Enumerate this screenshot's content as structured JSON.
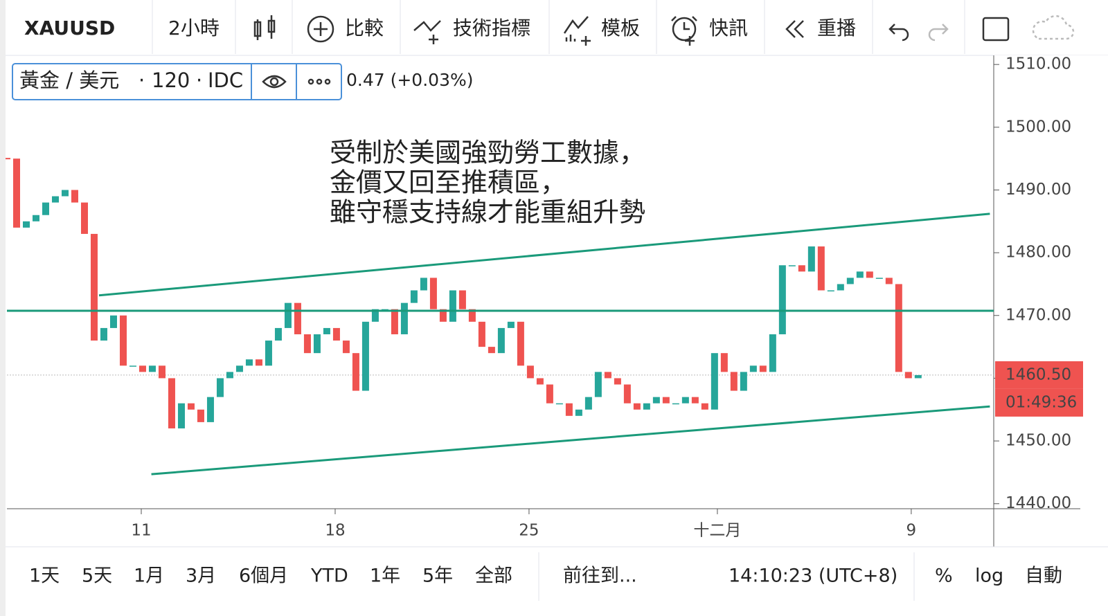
{
  "toolbar": {
    "symbol": "XAUUSD",
    "items": [
      "2小時",
      "比較",
      "技術指標",
      "模板",
      "快訊",
      "重播"
    ]
  },
  "legend": {
    "symbol": "黃金 / 美元",
    "interval": "120",
    "source": "IDC",
    "change": "0.47 (+0.03%)"
  },
  "chart_data": {
    "type": "candlestick",
    "annotation": [
      "受制於美國強勁勞工數據，",
      "金價又回至推積區，",
      "雖守穩支持線才能重組升勢"
    ],
    "values": [
      1495,
      1484,
      1485,
      1486,
      1488,
      1489,
      1490,
      1488,
      1483,
      1466,
      1468,
      1470,
      1462,
      1462,
      1461,
      1462,
      1460,
      1452,
      1456,
      1455,
      1453,
      1457,
      1460,
      1461,
      1462,
      1463,
      1462,
      1466,
      1468,
      1472,
      1467,
      1464,
      1467,
      1468,
      1466,
      1464,
      1458,
      1469,
      1471,
      1471,
      1467,
      1472,
      1474,
      1476,
      1471,
      1469,
      1474,
      1471,
      1469,
      1465,
      1464,
      1468,
      1469,
      1462,
      1460,
      1459,
      1456,
      1456,
      1454,
      1455,
      1457,
      1461,
      1460,
      1459,
      1456,
      1455,
      1456,
      1457,
      1456,
      1456,
      1457,
      1456,
      1455,
      1464,
      1461,
      1458,
      1461,
      1462,
      1461,
      1467,
      1478,
      1478,
      1477,
      1481,
      1474,
      1474,
      1475,
      1476,
      1477,
      1476,
      1476,
      1475,
      1461,
      1460,
      1460.5
    ],
    "up_color": "#26a69a",
    "down_color": "#ef5350",
    "xlim": [
      0,
      101.8
    ],
    "xticks": [
      {
        "value": 13.86,
        "label": "11"
      },
      {
        "value": 33.86,
        "label": "18"
      },
      {
        "value": 53.86,
        "label": "25"
      },
      {
        "value": 73.29,
        "label": "十二月"
      },
      {
        "value": 93.29,
        "label": "9"
      }
    ],
    "ylim": [
      1439.2,
      1510.9
    ],
    "yticks": [
      {
        "value": 1440,
        "label": "1440.00"
      },
      {
        "value": 1450,
        "label": "1450.00"
      },
      {
        "value": 1460,
        "label": "1460.00"
      },
      {
        "value": 1470,
        "label": "1470.00"
      },
      {
        "value": 1480,
        "label": "1480.00"
      },
      {
        "value": 1490,
        "label": "1490.00"
      },
      {
        "value": 1500,
        "label": "1500.00"
      },
      {
        "value": 1510,
        "label": "1510.00"
      }
    ],
    "trend_lines": [
      {
        "x": [
          9.5,
          101.4
        ],
        "y": [
          1473.2,
          1486.2
        ]
      },
      {
        "x": [
          0,
          101.8
        ],
        "y": [
          1470.75,
          1470.75
        ]
      },
      {
        "x": [
          14.9,
          101.4
        ],
        "y": [
          1444.7,
          1455.5
        ]
      }
    ],
    "line_color": "#1a9a7a",
    "price_label": {
      "value": 1460.5,
      "label": "1460.50"
    },
    "countdown": "01:49:36"
  },
  "bottom_bar": {
    "ranges": [
      "1天",
      "5天",
      "1月",
      "3月",
      "6個月",
      "YTD",
      "1年",
      "5年",
      "全部"
    ],
    "goto": "前往到...",
    "time": "14:10:23 (UTC+8)",
    "percent": "%",
    "log": "log",
    "auto": "自動"
  }
}
